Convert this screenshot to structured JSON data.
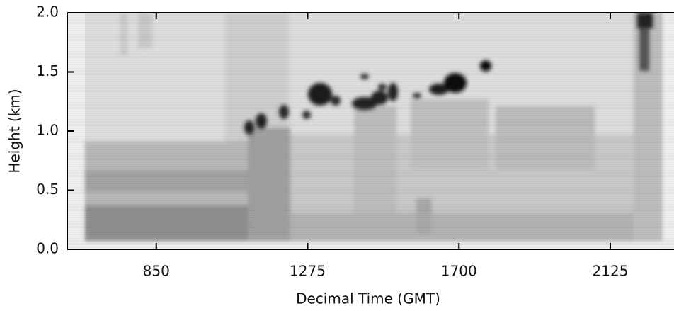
{
  "chart_data": {
    "type": "image",
    "x_label": "Decimal Time (GMT)",
    "y_label": "Height (km)",
    "xlim": [
      600,
      2304
    ],
    "ylim": [
      0,
      2
    ],
    "xticks": [
      850,
      1275,
      1700,
      2125
    ],
    "yticks": [
      {
        "value": 0,
        "label": "0.0"
      },
      {
        "value": 0.5,
        "label": "0.5"
      },
      {
        "value": 1,
        "label": "1.0"
      },
      {
        "value": 1.5,
        "label": "1.5"
      },
      {
        "value": 2,
        "label": "2.0"
      }
    ]
  }
}
